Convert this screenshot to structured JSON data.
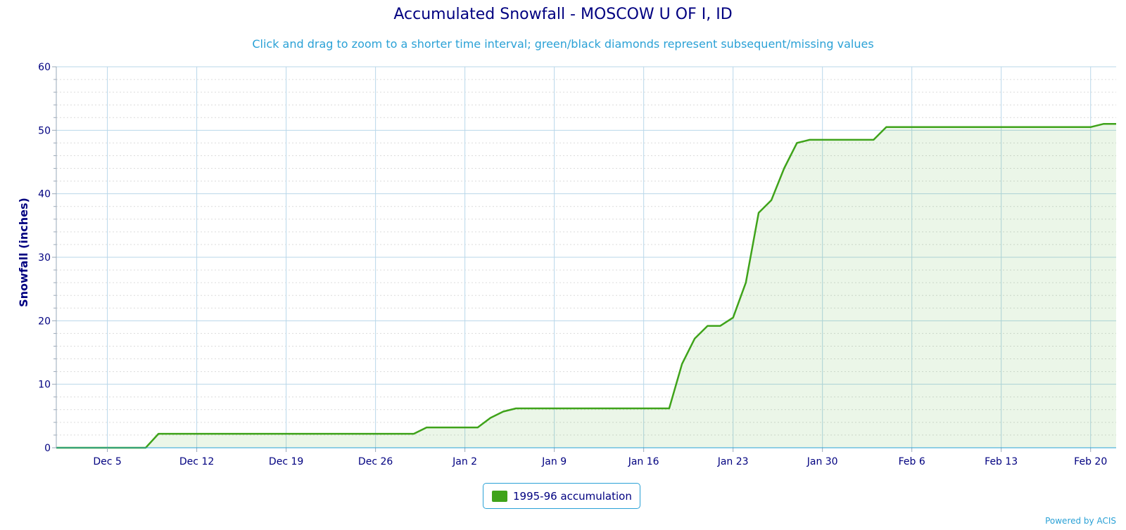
{
  "chart_data": {
    "type": "area",
    "title": "Accumulated Snowfall - MOSCOW U OF I, ID",
    "subtitle": "Click and drag to zoom to a shorter time interval; green/black diamonds represent subsequent/missing values",
    "xlabel": "",
    "ylabel": "Snowfall (inches)",
    "x_range": [
      "1995-12-01",
      "1996-02-22"
    ],
    "ylim": [
      0,
      60
    ],
    "y_ticks": [
      0,
      10,
      20,
      30,
      40,
      50,
      60
    ],
    "x_ticks": [
      {
        "date": "1995-12-05",
        "label": "Dec 5"
      },
      {
        "date": "1995-12-12",
        "label": "Dec 12"
      },
      {
        "date": "1995-12-19",
        "label": "Dec 19"
      },
      {
        "date": "1995-12-26",
        "label": "Dec 26"
      },
      {
        "date": "1996-01-02",
        "label": "Jan 2"
      },
      {
        "date": "1996-01-09",
        "label": "Jan 9"
      },
      {
        "date": "1996-01-16",
        "label": "Jan 16"
      },
      {
        "date": "1996-01-23",
        "label": "Jan 23"
      },
      {
        "date": "1996-01-30",
        "label": "Jan 30"
      },
      {
        "date": "1996-02-06",
        "label": "Feb 6"
      },
      {
        "date": "1996-02-13",
        "label": "Feb 13"
      },
      {
        "date": "1996-02-20",
        "label": "Feb 20"
      }
    ],
    "grid": true,
    "legend_position": "bottom-center",
    "series": [
      {
        "name": "1995-96 accumulation",
        "color": "#3fa31a",
        "points": [
          [
            "1995-12-01",
            0
          ],
          [
            "1995-12-08",
            0
          ],
          [
            "1995-12-09",
            2.2
          ],
          [
            "1995-12-29",
            2.2
          ],
          [
            "1995-12-30",
            3.2
          ],
          [
            "1996-01-03",
            3.2
          ],
          [
            "1996-01-04",
            4.7
          ],
          [
            "1996-01-05",
            5.7
          ],
          [
            "1996-01-06",
            6.2
          ],
          [
            "1996-01-18",
            6.2
          ],
          [
            "1996-01-19",
            13.2
          ],
          [
            "1996-01-20",
            17.2
          ],
          [
            "1996-01-21",
            19.2
          ],
          [
            "1996-01-22",
            19.2
          ],
          [
            "1996-01-23",
            20.5
          ],
          [
            "1996-01-24",
            26.0
          ],
          [
            "1996-01-25",
            37.0
          ],
          [
            "1996-01-26",
            39.0
          ],
          [
            "1996-01-27",
            44.0
          ],
          [
            "1996-01-28",
            48.0
          ],
          [
            "1996-01-29",
            48.5
          ],
          [
            "1996-02-03",
            48.5
          ],
          [
            "1996-02-04",
            50.5
          ],
          [
            "1996-02-20",
            50.5
          ],
          [
            "1996-02-21",
            51.0
          ],
          [
            "1996-02-22",
            51.0
          ]
        ]
      }
    ]
  },
  "credit": "Powered by ACIS"
}
